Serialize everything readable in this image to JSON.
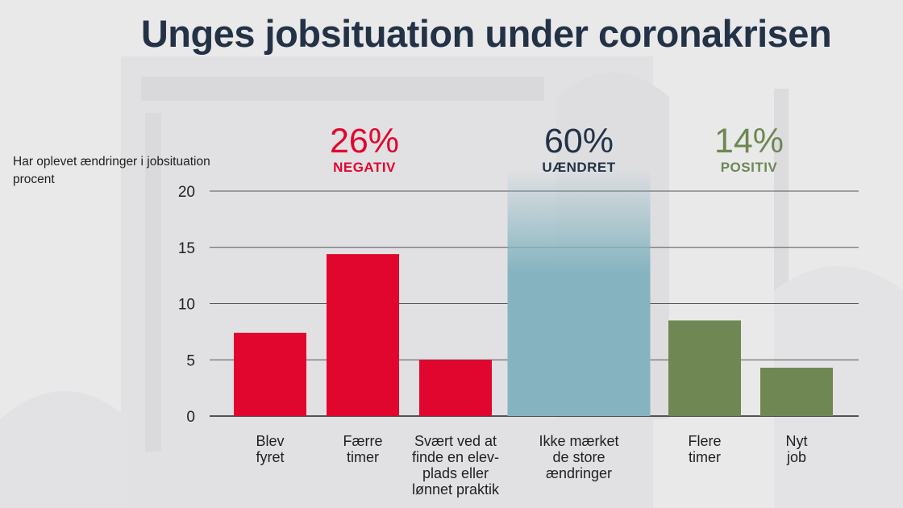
{
  "header": {
    "title": "Unges jobsituation under coronakrisen"
  },
  "ylabel_lines": [
    "Har oplevet ændringer i jobsituation",
    "procent"
  ],
  "groups": {
    "negative": {
      "pct": "26%",
      "label": "NEGATIV",
      "color": "#e1062d"
    },
    "unchanged": {
      "pct": "60%",
      "label": "UÆNDRET",
      "color": "#233246"
    },
    "positive": {
      "pct": "14%",
      "label": "POSITIV",
      "color": "#6f8752"
    }
  },
  "chart_data": {
    "type": "bar",
    "categories": [
      "Blev\nfyret",
      "Færre\ntimer",
      "Svært ved at\nfinde en elev-\nplads eller\nlønnet praktik",
      "Ikke mærket\nde store\nændringer",
      "Flere\ntimer",
      "Nyt\njob"
    ],
    "values": [
      7.4,
      14.4,
      5.0,
      22,
      8.5,
      4.3
    ],
    "bar_colors": [
      "#e1062d",
      "#e1062d",
      "#e1062d",
      "#85b4c0",
      "#6f8752",
      "#6f8752"
    ],
    "ylim": [
      0,
      20
    ],
    "yticks": [
      0,
      5,
      10,
      15,
      20
    ],
    "grid": true,
    "note_unchanged_bar_extends_beyond_axis": true
  }
}
